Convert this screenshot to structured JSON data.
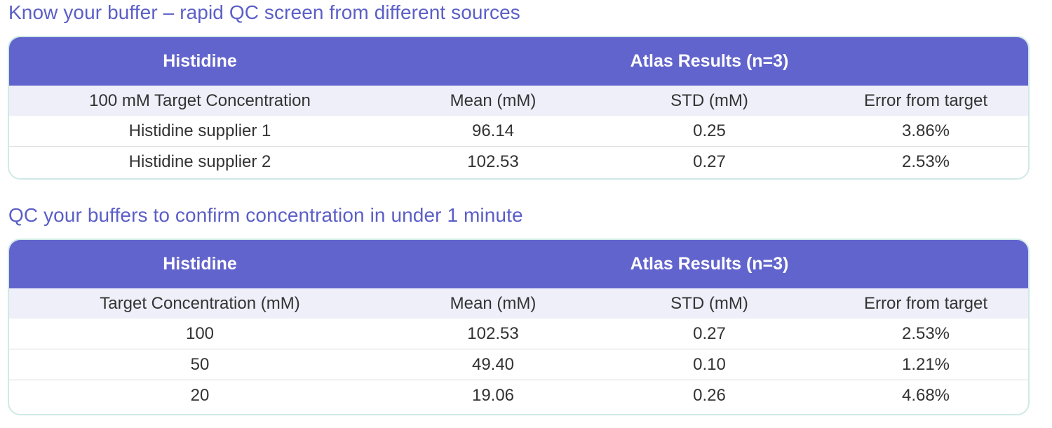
{
  "section1": {
    "title": "Know your buffer – rapid QC screen from different sources",
    "table": {
      "header_left": "Histidine",
      "header_right": "Atlas Results (n=3)",
      "columns": [
        "100 mM Target Concentration",
        "Mean (mM)",
        "STD (mM)",
        "Error from target"
      ],
      "rows": [
        [
          "Histidine supplier 1",
          "96.14",
          "0.25",
          "3.86%"
        ],
        [
          "Histidine supplier 2",
          "102.53",
          "0.27",
          "2.53%"
        ]
      ]
    }
  },
  "section2": {
    "title": "QC your buffers to confirm concentration in under 1 minute",
    "table": {
      "header_left": "Histidine",
      "header_right": "Atlas Results (n=3)",
      "columns": [
        "Target Concentration (mM)",
        "Mean (mM)",
        "STD (mM)",
        "Error from target"
      ],
      "rows": [
        [
          "100",
          "102.53",
          "0.27",
          "2.53%"
        ],
        [
          "50",
          "49.40",
          "0.10",
          "1.21%"
        ],
        [
          "20",
          "19.06",
          "0.26",
          "4.68%"
        ]
      ]
    }
  },
  "colors": {
    "title_text": "#5b5fc7",
    "header_background": "#6264cd",
    "subheader_background": "#eeeff9",
    "card_border": "#cfeae6"
  }
}
